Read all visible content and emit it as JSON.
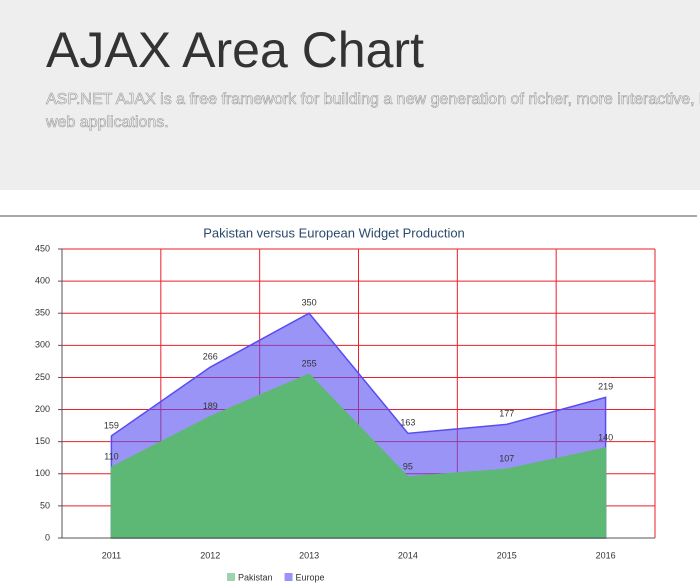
{
  "header": {
    "title": "AJAX Area Chart",
    "lines": [
      "ASP.NET AJAX is a free framework for building a new generation of richer, more interactive, hi",
      "web applications."
    ]
  },
  "chart_data": {
    "type": "area",
    "title": "Pakistan versus European Widget Production",
    "categories": [
      "2011",
      "2012",
      "2013",
      "2014",
      "2015",
      "2016"
    ],
    "series": [
      {
        "name": "Pakistan",
        "color": "#5db875",
        "values": [
          110,
          189,
          255,
          95,
          107,
          140
        ]
      },
      {
        "name": "Europe",
        "color": "#584df2",
        "values": [
          159,
          266,
          350,
          163,
          177,
          219
        ]
      }
    ],
    "ylim": [
      0,
      450
    ],
    "yticks": [
      0,
      50,
      100,
      150,
      200,
      250,
      300,
      350,
      400,
      450
    ],
    "grid": true,
    "grid_color": "#e8202a",
    "legend": "bottom"
  }
}
